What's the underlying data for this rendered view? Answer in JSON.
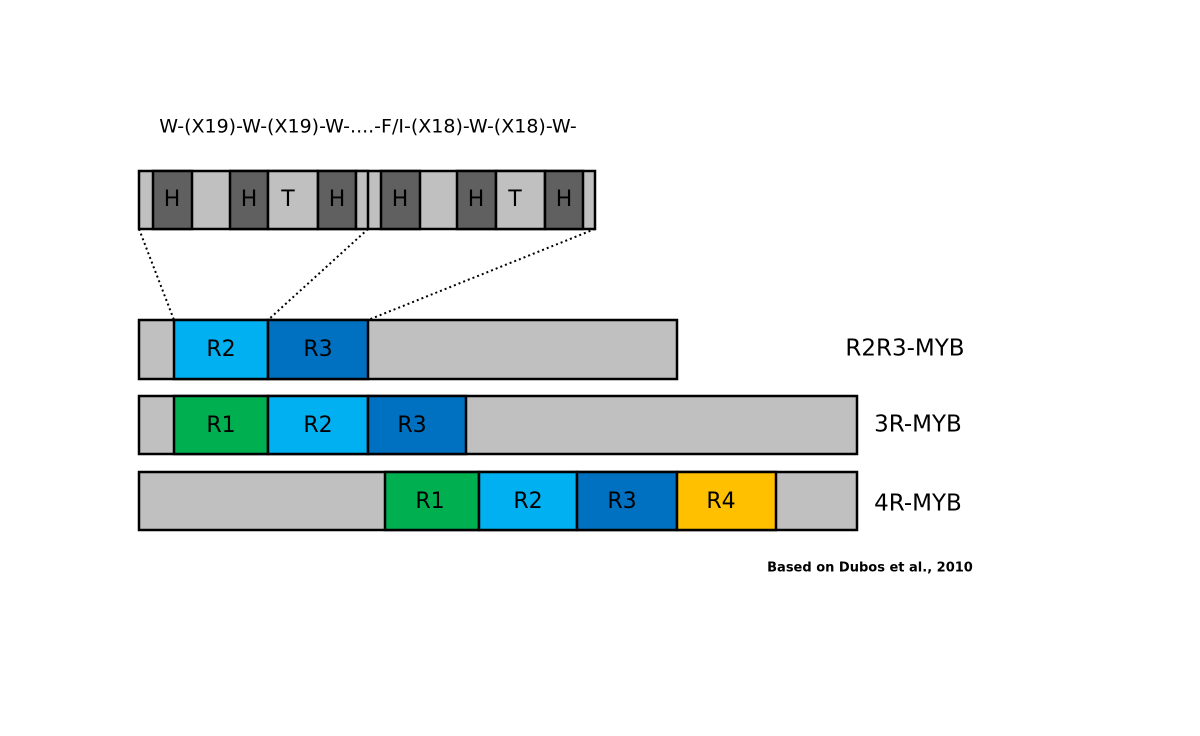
{
  "motif": "W-(X19)-W-(X19)-W-....-F/I-(X18)-W-(X18)-W-",
  "repeat_detail": {
    "labels": [
      "H",
      "H",
      "T",
      "H",
      "H",
      "H",
      "T",
      "H"
    ]
  },
  "proteins": [
    {
      "name": "R2R3-MYB",
      "domains": [
        "R2",
        "R3"
      ]
    },
    {
      "name": "3R-MYB",
      "domains": [
        "R1",
        "R2",
        "R3"
      ]
    },
    {
      "name": "4R-MYB",
      "domains": [
        "R1",
        "R2",
        "R3",
        "R4"
      ]
    }
  ],
  "citation": "Based on Dubos et al., 2010"
}
